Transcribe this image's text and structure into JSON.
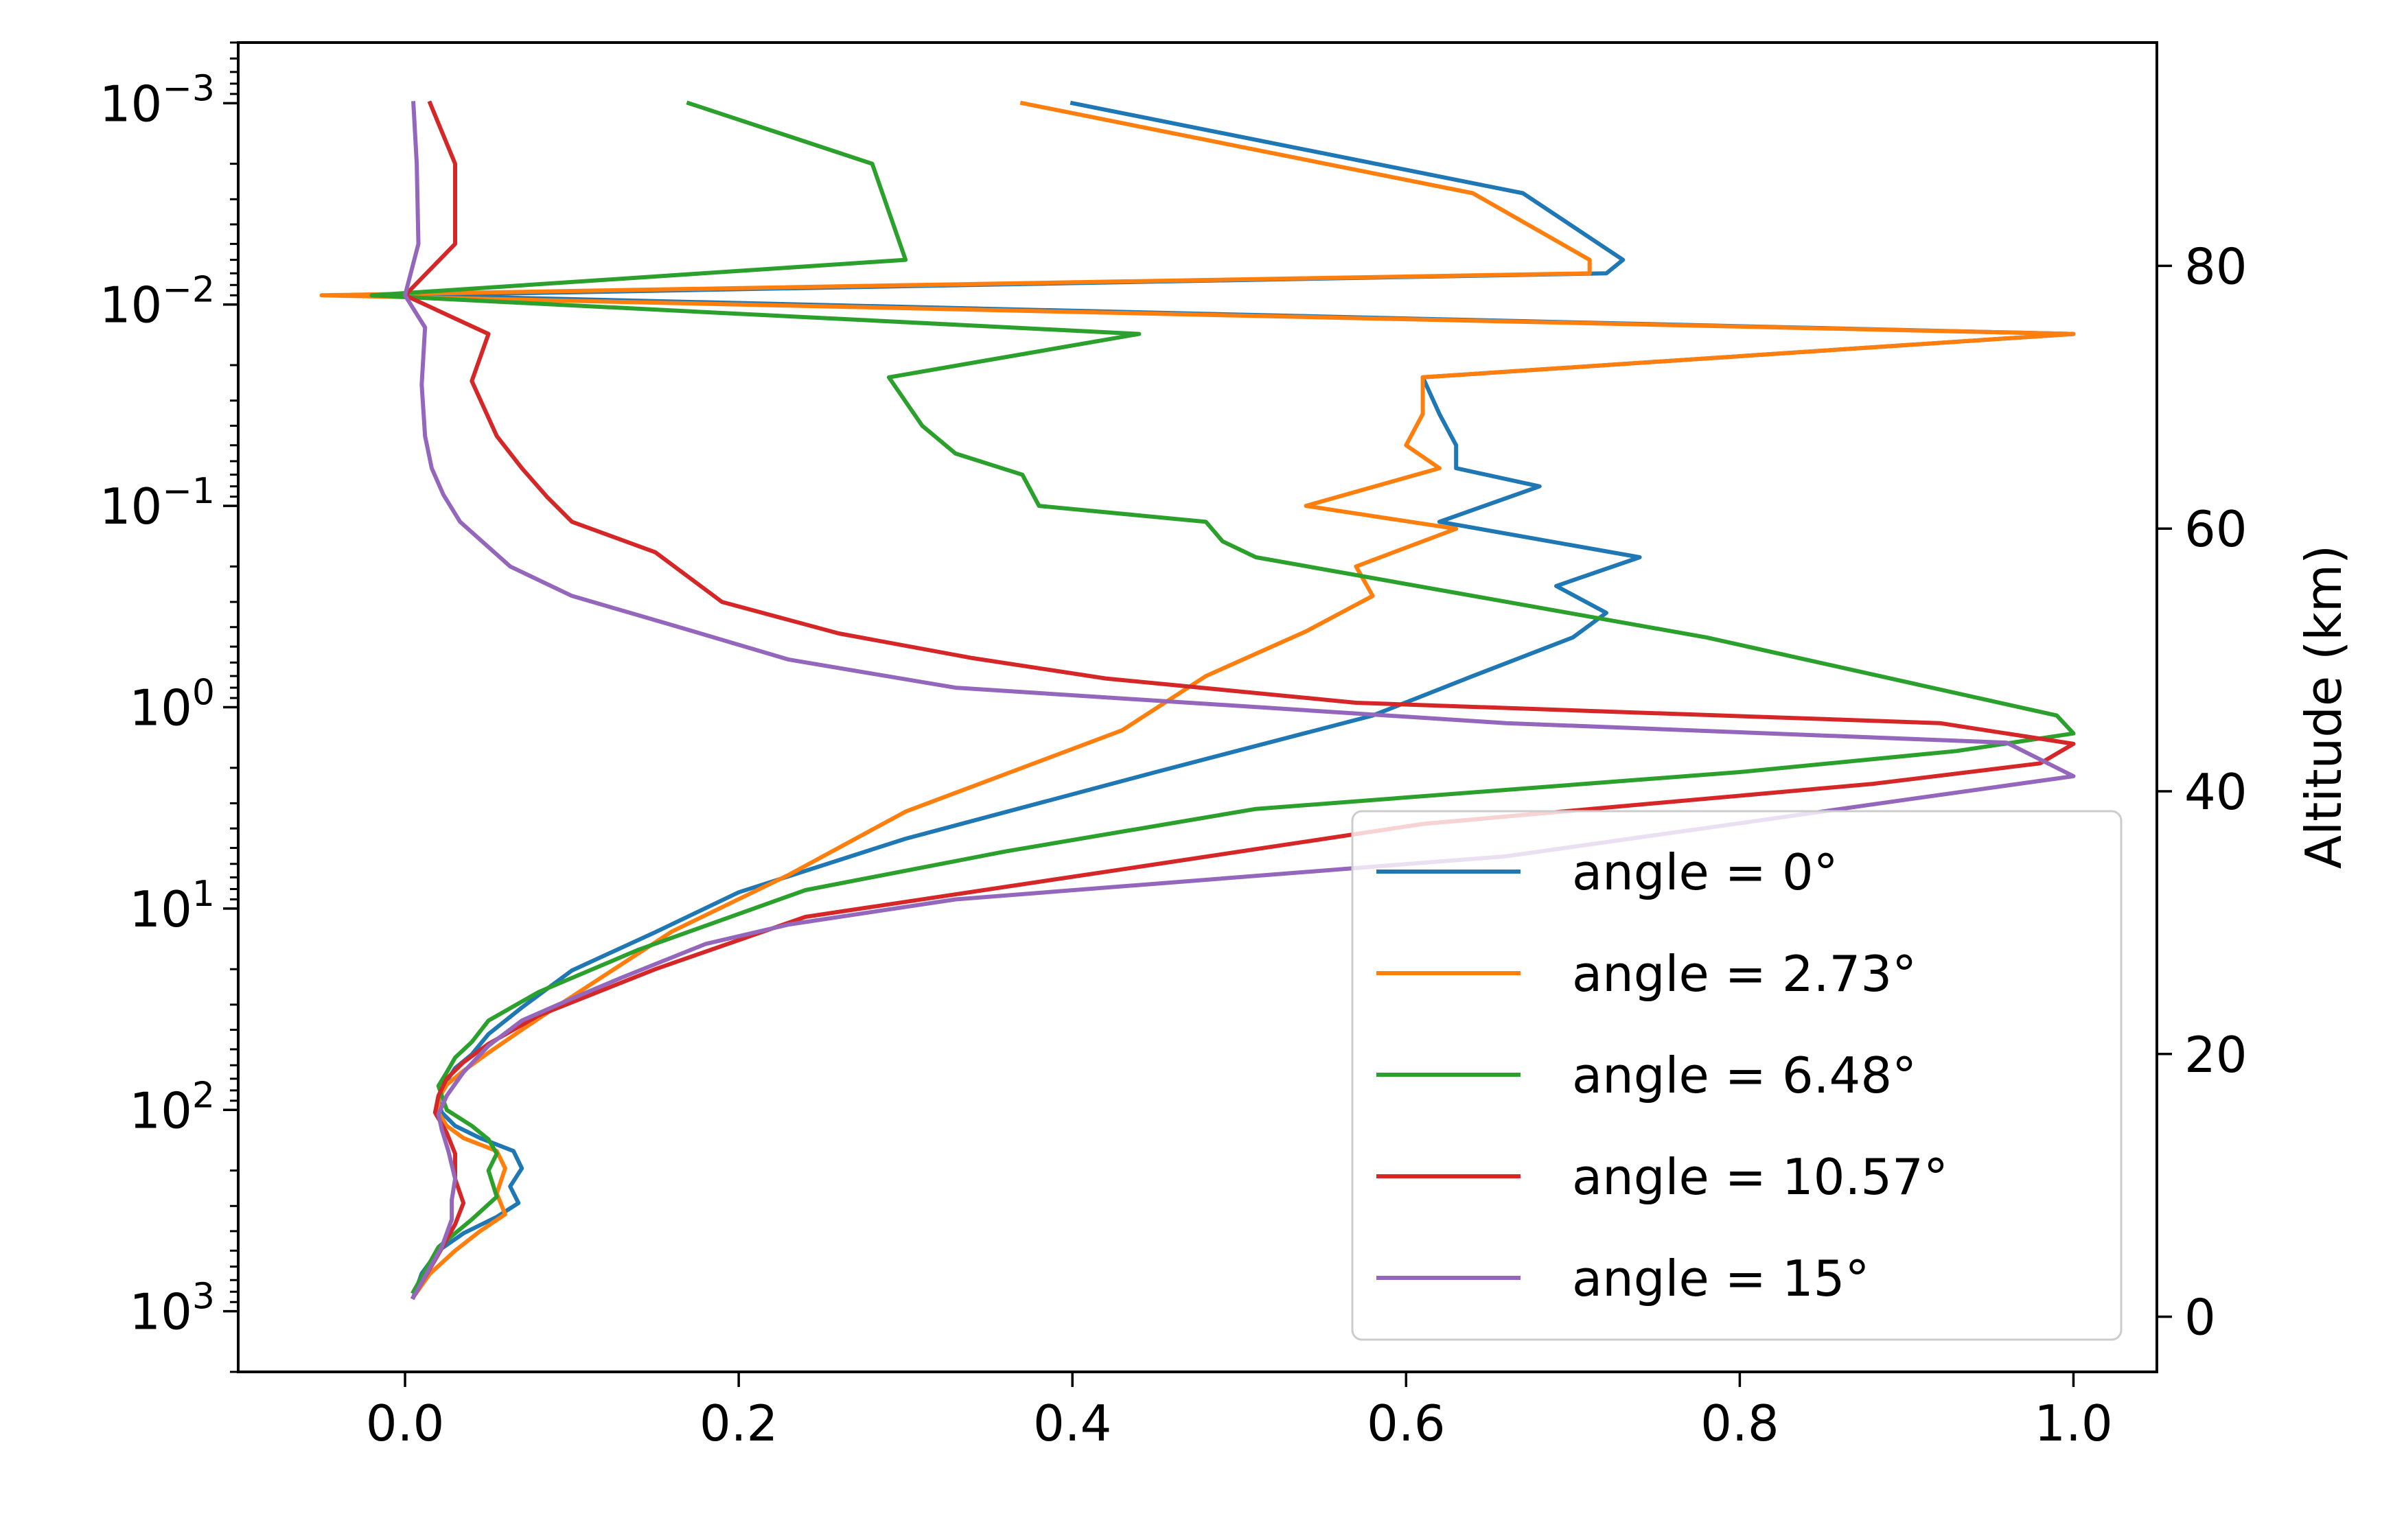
{
  "chart_data": {
    "type": "line",
    "title": "",
    "xlabel": "",
    "ylabel": "",
    "right_ylabel": "Altitude (km)",
    "xlim": [
      -0.1,
      1.05
    ],
    "ylim_log": [
      2000,
      0.0005
    ],
    "y_scale": "log",
    "y_inverted": true,
    "right_ylim": [
      -4.2,
      97.0
    ],
    "x_ticks": [
      {
        "value": 0.0,
        "label": "0.0"
      },
      {
        "value": 0.2,
        "label": "0.2"
      },
      {
        "value": 0.4,
        "label": "0.4"
      },
      {
        "value": 0.6,
        "label": "0.6"
      },
      {
        "value": 0.8,
        "label": "0.8"
      },
      {
        "value": 1.0,
        "label": "1.0"
      }
    ],
    "y_ticks": [
      {
        "value": 0.001,
        "mant": "10",
        "exp": "−3"
      },
      {
        "value": 0.01,
        "mant": "10",
        "exp": "−2"
      },
      {
        "value": 0.1,
        "mant": "10",
        "exp": "−1"
      },
      {
        "value": 1,
        "mant": "10",
        "exp": "0"
      },
      {
        "value": 10,
        "mant": "10",
        "exp": "1"
      },
      {
        "value": 100,
        "mant": "10",
        "exp": "2"
      },
      {
        "value": 1000,
        "mant": "10",
        "exp": "3"
      }
    ],
    "right_ticks": [
      {
        "value": 0,
        "label": "0"
      },
      {
        "value": 20,
        "label": "20"
      },
      {
        "value": 40,
        "label": "40"
      },
      {
        "value": 60,
        "label": "60"
      },
      {
        "value": 80,
        "label": "80"
      }
    ],
    "legend_position": "lower-right",
    "series": [
      {
        "name": "angle = 0°",
        "color": "#1f77b4",
        "x": [
          0.4,
          0.67,
          0.73,
          0.72,
          0.0,
          1.0,
          0.61,
          0.62,
          0.63,
          0.63,
          0.68,
          0.62,
          0.74,
          0.69,
          0.72,
          0.7,
          0.64,
          0.58,
          0.45,
          0.3,
          0.2,
          0.15,
          0.1,
          0.07,
          0.05,
          0.04,
          0.03,
          0.025,
          0.02,
          0.022,
          0.03,
          0.045,
          0.065,
          0.07,
          0.063,
          0.068,
          0.055,
          0.035,
          0.02,
          0.01,
          0.005
        ],
        "y": [
          0.001,
          0.0028,
          0.006,
          0.007,
          0.009,
          0.014,
          0.023,
          0.035,
          0.05,
          0.065,
          0.08,
          0.12,
          0.18,
          0.25,
          0.34,
          0.45,
          0.7,
          1.1,
          2.1,
          4.5,
          8.3,
          13.1,
          20.3,
          31,
          42,
          53,
          62,
          72,
          88,
          103,
          120,
          138,
          160,
          195,
          240,
          290,
          340,
          410,
          500,
          650,
          850
        ]
      },
      {
        "name": "angle = 2.73°",
        "color": "#ff7f0e",
        "x": [
          0.37,
          0.64,
          0.71,
          0.71,
          -0.05,
          1.0,
          0.61,
          0.61,
          0.6,
          0.62,
          0.54,
          0.63,
          0.57,
          0.58,
          0.54,
          0.48,
          0.43,
          0.3,
          0.23,
          0.16,
          0.09,
          0.07,
          0.05,
          0.035,
          0.025,
          0.02,
          0.02,
          0.025,
          0.035,
          0.055,
          0.06,
          0.055,
          0.06,
          0.045,
          0.03,
          0.015,
          0.005
        ],
        "y": [
          0.001,
          0.0028,
          0.006,
          0.007,
          0.009,
          0.014,
          0.023,
          0.035,
          0.05,
          0.065,
          0.1,
          0.13,
          0.2,
          0.28,
          0.42,
          0.7,
          1.3,
          3.3,
          6.8,
          13,
          31,
          40,
          52,
          64,
          75,
          88,
          103,
          120,
          138,
          160,
          195,
          260,
          330,
          400,
          500,
          650,
          850
        ]
      },
      {
        "name": "angle = 6.48°",
        "color": "#2ca02c",
        "x": [
          0.17,
          0.28,
          0.3,
          -0.02,
          0.44,
          0.29,
          0.31,
          0.33,
          0.37,
          0.38,
          0.48,
          0.49,
          0.51,
          0.78,
          0.99,
          1.0,
          0.93,
          0.8,
          0.51,
          0.36,
          0.24,
          0.14,
          0.08,
          0.05,
          0.04,
          0.03,
          0.025,
          0.02,
          0.025,
          0.04,
          0.05,
          0.055,
          0.05,
          0.055,
          0.04,
          0.02,
          0.005
        ],
        "y": [
          0.001,
          0.002,
          0.006,
          0.009,
          0.014,
          0.023,
          0.04,
          0.055,
          0.07,
          0.1,
          0.12,
          0.15,
          0.18,
          0.45,
          1.1,
          1.35,
          1.65,
          2.1,
          3.2,
          5.2,
          8.1,
          16,
          26,
          36,
          46,
          55,
          65,
          76,
          100,
          120,
          140,
          165,
          200,
          270,
          350,
          480,
          800
        ]
      },
      {
        "name": "angle = 10.57°",
        "color": "#d62728",
        "x": [
          0.015,
          0.03,
          0.03,
          0.0,
          0.05,
          0.04,
          0.055,
          0.07,
          0.085,
          0.1,
          0.15,
          0.19,
          0.26,
          0.34,
          0.42,
          0.57,
          0.92,
          1.0,
          0.98,
          0.88,
          0.61,
          0.44,
          0.24,
          0.15,
          0.08,
          0.05,
          0.035,
          0.025,
          0.02,
          0.018,
          0.025,
          0.03,
          0.03,
          0.035,
          0.03,
          0.02,
          0.005
        ],
        "y": [
          0.001,
          0.002,
          0.005,
          0.009,
          0.014,
          0.024,
          0.045,
          0.065,
          0.09,
          0.12,
          0.17,
          0.3,
          0.43,
          0.57,
          0.72,
          0.95,
          1.2,
          1.52,
          1.9,
          2.4,
          3.8,
          6.2,
          11,
          20,
          34,
          47,
          58,
          70,
          85,
          103,
          130,
          165,
          220,
          290,
          370,
          520,
          850
        ]
      },
      {
        "name": "angle = 15°",
        "color": "#9467bd",
        "x": [
          0.005,
          0.007,
          0.008,
          0.0,
          0.012,
          0.01,
          0.012,
          0.016,
          0.023,
          0.033,
          0.063,
          0.1,
          0.155,
          0.23,
          0.33,
          0.66,
          0.96,
          1.0,
          0.91,
          0.66,
          0.33,
          0.23,
          0.18,
          0.13,
          0.1,
          0.07,
          0.05,
          0.035,
          0.025,
          0.02,
          0.022,
          0.026,
          0.03,
          0.028,
          0.028,
          0.022,
          0.005
        ],
        "y": [
          0.001,
          0.002,
          0.005,
          0.009,
          0.013,
          0.025,
          0.045,
          0.065,
          0.088,
          0.12,
          0.2,
          0.28,
          0.38,
          0.58,
          0.8,
          1.2,
          1.5,
          2.2,
          2.8,
          5.5,
          9,
          12,
          15,
          22,
          28,
          36,
          48,
          65,
          85,
          105,
          125,
          160,
          220,
          280,
          350,
          480,
          850
        ]
      }
    ]
  }
}
